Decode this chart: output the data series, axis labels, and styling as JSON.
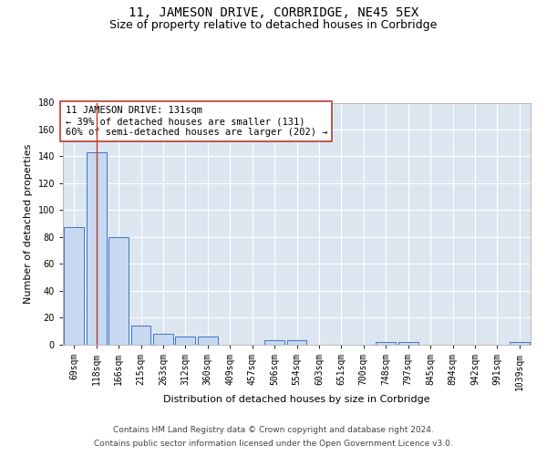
{
  "title": "11, JAMESON DRIVE, CORBRIDGE, NE45 5EX",
  "subtitle": "Size of property relative to detached houses in Corbridge",
  "xlabel": "Distribution of detached houses by size in Corbridge",
  "ylabel": "Number of detached properties",
  "categories": [
    "69sqm",
    "118sqm",
    "166sqm",
    "215sqm",
    "263sqm",
    "312sqm",
    "360sqm",
    "409sqm",
    "457sqm",
    "506sqm",
    "554sqm",
    "603sqm",
    "651sqm",
    "700sqm",
    "748sqm",
    "797sqm",
    "845sqm",
    "894sqm",
    "942sqm",
    "991sqm",
    "1039sqm"
  ],
  "values": [
    87,
    143,
    80,
    14,
    8,
    6,
    6,
    0,
    0,
    3,
    3,
    0,
    0,
    0,
    2,
    2,
    0,
    0,
    0,
    0,
    2
  ],
  "bar_color": "#c6d9f0",
  "bar_edge_color": "#4472c4",
  "vline_x": 1,
  "vline_color": "#c0392b",
  "ylim": [
    0,
    180
  ],
  "yticks": [
    0,
    20,
    40,
    60,
    80,
    100,
    120,
    140,
    160,
    180
  ],
  "annotation_text": "11 JAMESON DRIVE: 131sqm\n← 39% of detached houses are smaller (131)\n60% of semi-detached houses are larger (202) →",
  "annotation_box_color": "#ffffff",
  "annotation_box_edge": "#c0392b",
  "footer_line1": "Contains HM Land Registry data © Crown copyright and database right 2024.",
  "footer_line2": "Contains public sector information licensed under the Open Government Licence v3.0.",
  "fig_bg_color": "#ffffff",
  "plot_bg_color": "#dce6f1",
  "grid_color": "#ffffff",
  "title_fontsize": 10,
  "subtitle_fontsize": 9,
  "axis_label_fontsize": 8,
  "tick_fontsize": 7,
  "annotation_fontsize": 7.5,
  "footer_fontsize": 6.5
}
